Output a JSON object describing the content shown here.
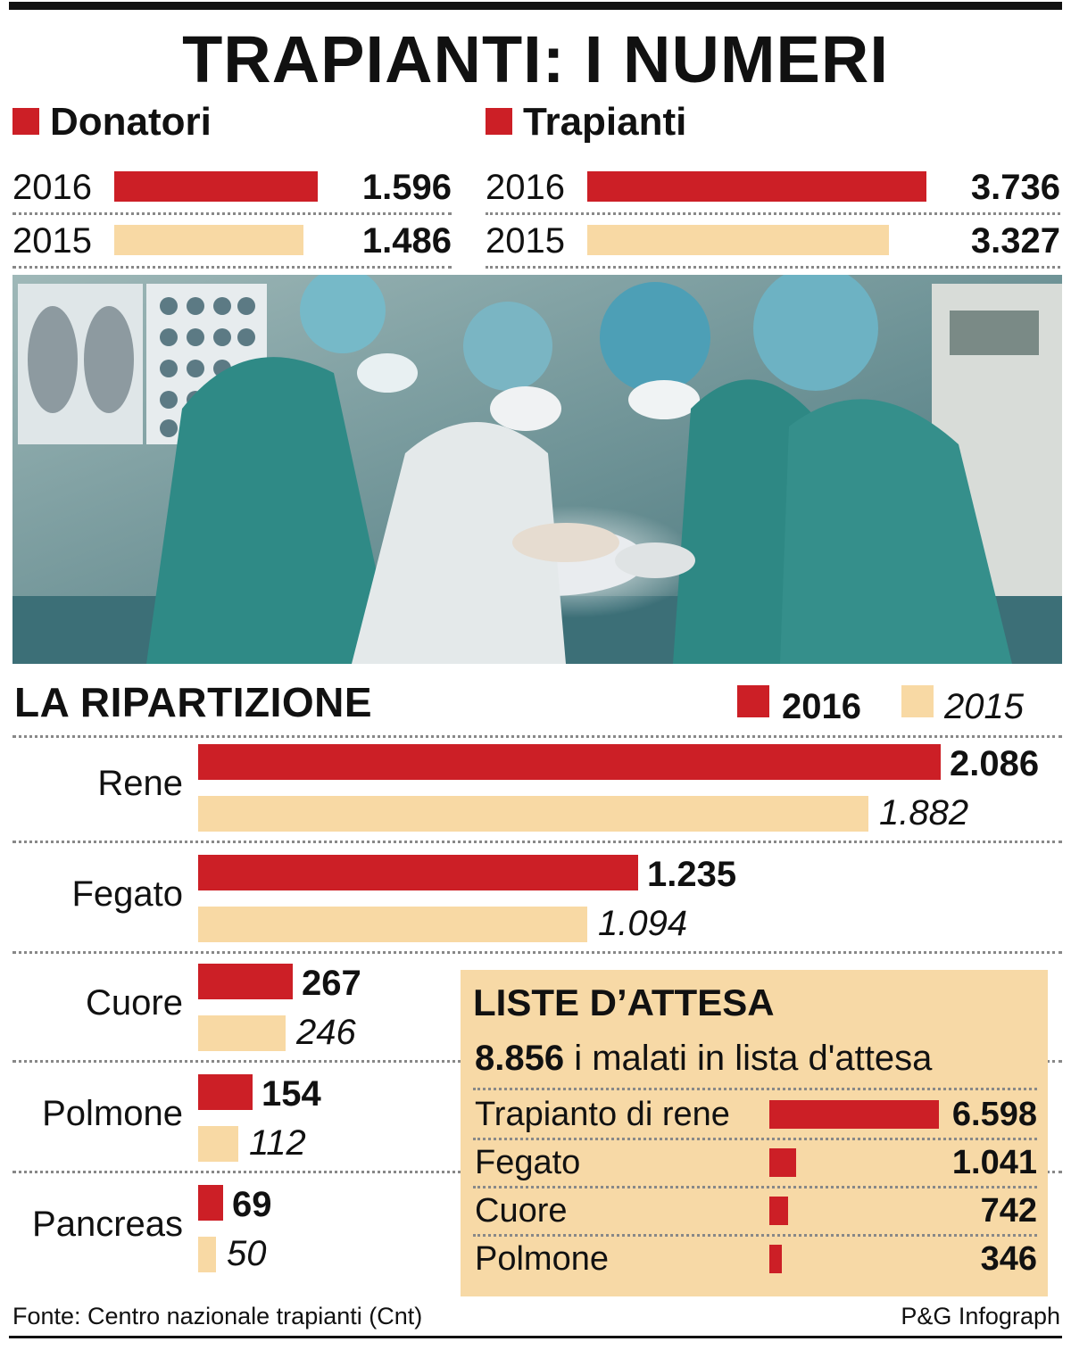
{
  "title": "TRAPIANTI: I NUMERI",
  "colors": {
    "y2016": "#cc1f26",
    "y2015": "#f8d9a4"
  },
  "donatori": {
    "heading": "Donatori",
    "rows": [
      {
        "year": "2016",
        "value": 1596,
        "label": "1.596"
      },
      {
        "year": "2015",
        "value": 1486,
        "label": "1.486"
      }
    ]
  },
  "trapianti": {
    "heading": "Trapianti",
    "rows": [
      {
        "year": "2016",
        "value": 3736,
        "label": "3.736"
      },
      {
        "year": "2015",
        "value": 3327,
        "label": "3.327"
      }
    ]
  },
  "photo": {
    "icon": "surgery-photo"
  },
  "ripartizione": {
    "title": "LA RIPARTIZIONE",
    "legend": {
      "y2016": "2016",
      "y2015": "2015"
    },
    "rows": [
      {
        "organ": "Rene",
        "v2016": 2086,
        "l2016": "2.086",
        "v2015": 1882,
        "l2015": "1.882"
      },
      {
        "organ": "Fegato",
        "v2016": 1235,
        "l2016": "1.235",
        "v2015": 1094,
        "l2015": "1.094"
      },
      {
        "organ": "Cuore",
        "v2016": 267,
        "l2016": "267",
        "v2015": 246,
        "l2015": "246"
      },
      {
        "organ": "Polmone",
        "v2016": 154,
        "l2016": "154",
        "v2015": 112,
        "l2015": "112"
      },
      {
        "organ": "Pancreas",
        "v2016": 69,
        "l2016": "69",
        "v2015": 50,
        "l2015": "50"
      }
    ]
  },
  "liste": {
    "title": "LISTE D’ATTESA",
    "total_label": "8.856",
    "total_text": " i malati in lista d'attesa",
    "rows": [
      {
        "label": "Trapianto di rene",
        "value": 6598,
        "vlabel": "6.598"
      },
      {
        "label": "Fegato",
        "value": 1041,
        "vlabel": "1.041"
      },
      {
        "label": "Cuore",
        "value": 742,
        "vlabel": "742"
      },
      {
        "label": "Polmone",
        "value": 346,
        "vlabel": "346"
      }
    ]
  },
  "footer": {
    "source": "Fonte: Centro nazionale trapianti (Cnt)",
    "credit": "P&G Infograph"
  },
  "chart_data": [
    {
      "type": "bar",
      "title": "Donatori",
      "categories": [
        "2016",
        "2015"
      ],
      "values": [
        1596,
        1486
      ]
    },
    {
      "type": "bar",
      "title": "Trapianti",
      "categories": [
        "2016",
        "2015"
      ],
      "values": [
        3736,
        3327
      ]
    },
    {
      "type": "bar",
      "title": "LA RIPARTIZIONE",
      "categories": [
        "Rene",
        "Fegato",
        "Cuore",
        "Polmone",
        "Pancreas"
      ],
      "series": [
        {
          "name": "2016",
          "values": [
            2086,
            1235,
            267,
            154,
            69
          ]
        },
        {
          "name": "2015",
          "values": [
            1882,
            1094,
            246,
            112,
            50
          ]
        }
      ],
      "legend": "top-right"
    },
    {
      "type": "bar",
      "title": "LISTE D’ATTESA",
      "subtitle": "8.856 i malati in lista d'attesa",
      "categories": [
        "Trapianto di rene",
        "Fegato",
        "Cuore",
        "Polmone"
      ],
      "values": [
        6598,
        1041,
        742,
        346
      ]
    }
  ]
}
